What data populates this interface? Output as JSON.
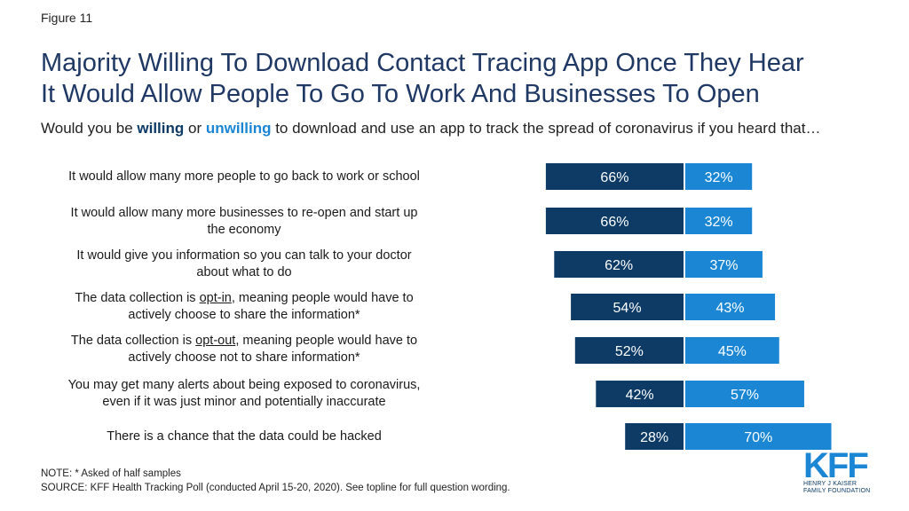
{
  "figure_label": "Figure 11",
  "title_line1": "Majority Willing To Download Contact Tracing App Once They Hear",
  "title_line2": "It Would Allow People To Go To Work And Businesses To Open",
  "subtitle": {
    "before": "Would you be ",
    "willing": "willing",
    "or": " or ",
    "unwilling": "unwilling",
    "after": " to download and use an app to track the spread of coronavirus if you heard that…"
  },
  "rows": [
    {
      "line1": "It would allow many more people to go back to work or school",
      "line2": ""
    },
    {
      "line1": "It would allow many more businesses to re-open and start up",
      "line2": "the economy"
    },
    {
      "line1": "It would give you information so you can talk to your doctor",
      "line2": "about what to do"
    },
    {
      "pre": "The data collection is ",
      "u": "opt-in",
      "post": ", meaning people would have to",
      "line2": "actively choose to share the information*"
    },
    {
      "pre": "The data collection is ",
      "u": "opt-out",
      "post": ", meaning people  would have to",
      "line2": "actively choose not to share information*"
    },
    {
      "line1": "You may get many alerts about being exposed to coronavirus,",
      "line2": "even if it was just minor and potentially inaccurate"
    },
    {
      "line1": "There is a chance that the data could be hacked",
      "line2": ""
    }
  ],
  "chart_data": {
    "type": "bar",
    "orientation": "diverging-horizontal",
    "categories": [
      "It would allow many more people to go back to work or school",
      "It would allow many more businesses to re-open and start up the economy",
      "It would give you information so you can talk to your doctor about what to do",
      "The data collection is opt-in, meaning people would have to actively choose to share the information*",
      "The data collection is opt-out, meaning people  would have to actively choose not to share information*",
      "You may get many alerts about being exposed to coronavirus, even if it was just minor and potentially inaccurate",
      "There is a chance that the data could be hacked"
    ],
    "series": [
      {
        "name": "willing",
        "color": "#0d3b66",
        "values": [
          66,
          66,
          62,
          54,
          52,
          42,
          28
        ]
      },
      {
        "name": "unwilling",
        "color": "#1a86d4",
        "values": [
          32,
          32,
          37,
          43,
          45,
          57,
          70
        ]
      }
    ],
    "value_format": "{v}%"
  },
  "note": "NOTE: * Asked of half samples",
  "source": "SOURCE: KFF Health Tracking Poll (conducted April 15-20, 2020). See topline for full question wording.",
  "logo": {
    "mark": "KFF",
    "line1": "HENRY J KAISER",
    "line2": "FAMILY FOUNDATION"
  }
}
